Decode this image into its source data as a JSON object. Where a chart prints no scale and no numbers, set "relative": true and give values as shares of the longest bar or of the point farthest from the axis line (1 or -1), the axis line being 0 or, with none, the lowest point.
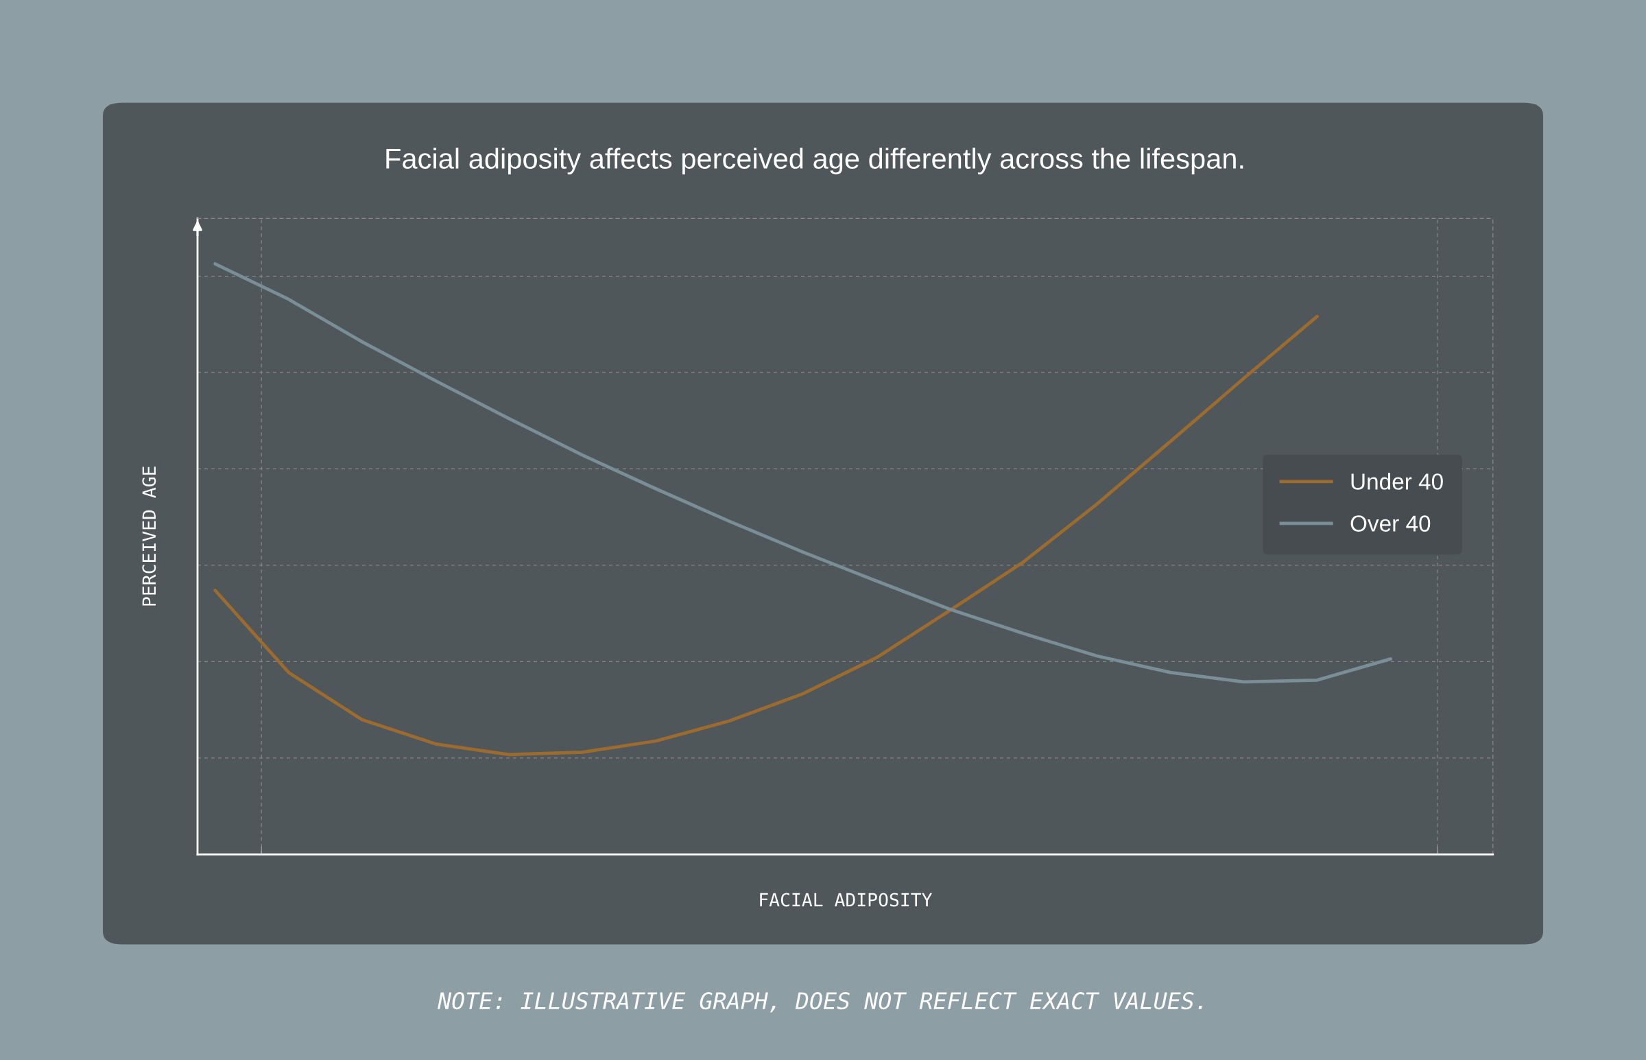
{
  "chart_data": {
    "type": "line",
    "title": "Facial adiposity affects perceived age differently across the lifespan.",
    "xlabel": "FACIAL ADIPOSITY",
    "ylabel": "PERCEIVED AGE",
    "annotations": [
      "NOTE: ILLUSTRATIVE GRAPH, DOES NOT REFLECT EXACT VALUES."
    ],
    "relative": true,
    "grid": true,
    "legend": "right",
    "tick_labels": false,
    "marker": "none",
    "line_style": "solid",
    "categories": [
      null,
      null,
      null,
      null,
      null,
      null,
      null,
      null,
      null,
      null,
      null,
      null,
      null,
      null,
      null,
      null,
      null
    ],
    "series": [
      {
        "name": "Under 40",
        "color": "#9c6b30",
        "values": [
          0.447,
          0.308,
          0.228,
          0.187,
          0.169,
          0.173,
          0.192,
          0.226,
          0.272,
          0.333,
          0.413,
          0.495,
          0.593,
          0.699,
          0.806,
          0.911,
          null
        ]
      },
      {
        "name": "Over 40",
        "color": "#7a8e98",
        "values": [
          1.0,
          0.94,
          0.868,
          0.802,
          0.738,
          0.676,
          0.619,
          0.564,
          0.512,
          0.463,
          0.415,
          0.374,
          0.336,
          0.308,
          0.292,
          0.295,
          0.331
        ]
      }
    ]
  }
}
